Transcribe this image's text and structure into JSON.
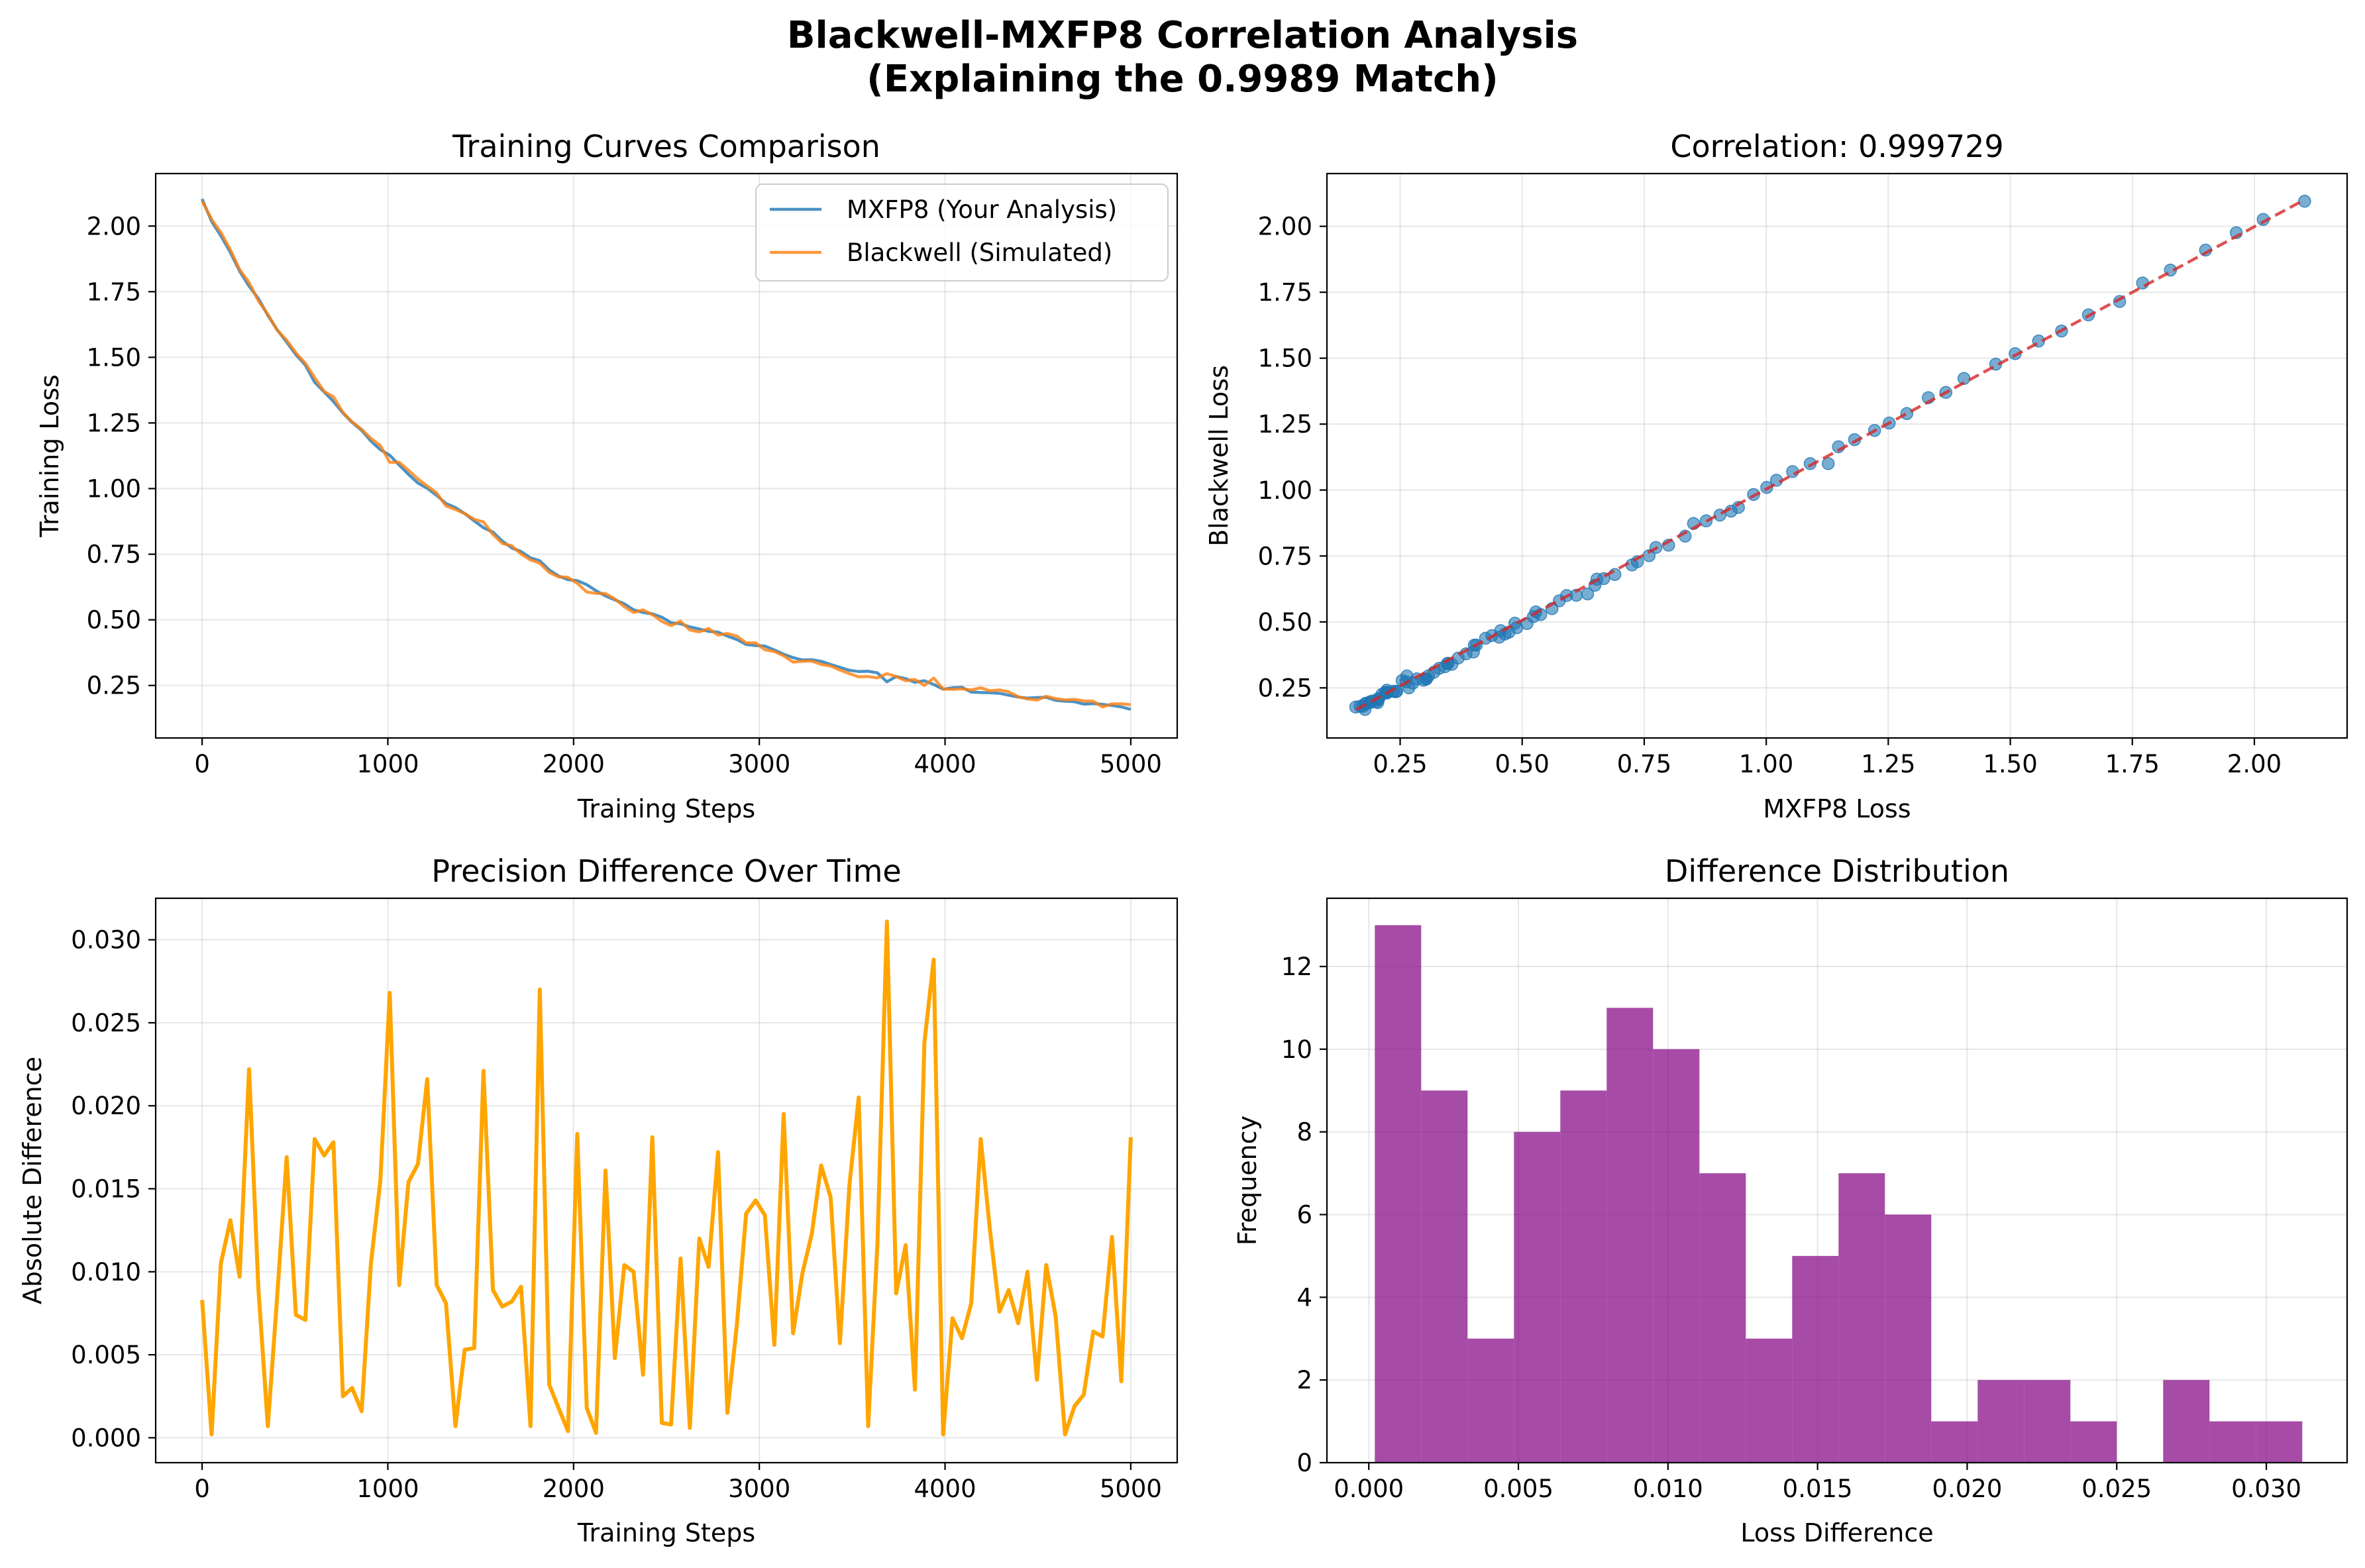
{
  "title_lines": [
    "Blackwell-MXFP8 Correlation Analysis",
    "(Explaining the 0.9989 Match)"
  ],
  "colors": {
    "mxfp8": "#1f77b4",
    "blackwell": "#ff7f0e",
    "fit_line": "#d62728",
    "difference": "#ffa500",
    "histogram": "#800080"
  },
  "chart_data": [
    {
      "type": "line",
      "title": "Training Curves Comparison",
      "xlabel": "Training Steps",
      "ylabel": "Training Loss",
      "xlim": [
        -250,
        5250
      ],
      "ylim": [
        0.05,
        2.2
      ],
      "xticks": [
        0,
        1000,
        2000,
        3000,
        4000,
        5000
      ],
      "yticks": [
        0.25,
        0.5,
        0.75,
        1.0,
        1.25,
        1.5,
        1.75,
        2.0
      ],
      "ytick_labels": [
        "0.25",
        "0.50",
        "0.75",
        "1.00",
        "1.25",
        "1.50",
        "1.75",
        "2.00"
      ],
      "grid": true,
      "legend": "upper right",
      "x": [
        0,
        51,
        101,
        152,
        202,
        253,
        303,
        354,
        404,
        455,
        505,
        556,
        606,
        657,
        707,
        758,
        808,
        859,
        909,
        960,
        1010,
        1061,
        1111,
        1162,
        1212,
        1263,
        1313,
        1364,
        1414,
        1465,
        1515,
        1566,
        1616,
        1667,
        1717,
        1768,
        1818,
        1869,
        1919,
        1970,
        2020,
        2071,
        2121,
        2172,
        2222,
        2273,
        2323,
        2374,
        2424,
        2475,
        2525,
        2576,
        2626,
        2677,
        2727,
        2778,
        2828,
        2879,
        2929,
        2980,
        3030,
        3081,
        3131,
        3182,
        3232,
        3283,
        3333,
        3384,
        3434,
        3485,
        3535,
        3586,
        3636,
        3687,
        3737,
        3788,
        3838,
        3889,
        3939,
        3990,
        4040,
        4091,
        4141,
        4192,
        4242,
        4293,
        4343,
        4394,
        4444,
        4495,
        4545,
        4596,
        4646,
        4697,
        4747,
        4798,
        4848,
        4899,
        4949,
        5000
      ],
      "series": [
        {
          "name": "MXFP8 (Your Analysis)",
          "values": [
            2.103,
            2.018,
            1.963,
            1.9,
            1.828,
            1.771,
            1.724,
            1.66,
            1.605,
            1.558,
            1.51,
            1.47,
            1.405,
            1.368,
            1.332,
            1.288,
            1.252,
            1.222,
            1.181,
            1.148,
            1.127,
            1.09,
            1.054,
            1.021,
            1.001,
            0.974,
            0.943,
            0.928,
            0.905,
            0.877,
            0.851,
            0.834,
            0.8,
            0.774,
            0.76,
            0.736,
            0.725,
            0.69,
            0.667,
            0.653,
            0.649,
            0.634,
            0.611,
            0.591,
            0.576,
            0.561,
            0.538,
            0.528,
            0.523,
            0.51,
            0.489,
            0.485,
            0.473,
            0.465,
            0.456,
            0.453,
            0.438,
            0.425,
            0.406,
            0.402,
            0.4,
            0.385,
            0.369,
            0.356,
            0.347,
            0.348,
            0.342,
            0.33,
            0.319,
            0.308,
            0.303,
            0.304,
            0.298,
            0.264,
            0.284,
            0.276,
            0.262,
            0.268,
            0.254,
            0.236,
            0.241,
            0.243,
            0.225,
            0.223,
            0.222,
            0.22,
            0.213,
            0.206,
            0.202,
            0.204,
            0.205,
            0.193,
            0.19,
            0.188,
            0.179,
            0.181,
            0.178,
            0.174,
            0.168,
            0.159
          ]
        },
        {
          "name": "Blackwell (Simulated)",
          "values": [
            2.095,
            2.026,
            1.976,
            1.91,
            1.834,
            1.785,
            1.715,
            1.664,
            1.603,
            1.565,
            1.517,
            1.477,
            1.423,
            1.37,
            1.35,
            1.29,
            1.254,
            1.226,
            1.191,
            1.164,
            1.1,
            1.1,
            1.07,
            1.037,
            1.01,
            0.983,
            0.934,
            0.92,
            0.905,
            0.883,
            0.873,
            0.825,
            0.791,
            0.782,
            0.751,
            0.728,
            0.716,
            0.68,
            0.664,
            0.662,
            0.639,
            0.606,
            0.601,
            0.6,
            0.58,
            0.55,
            0.528,
            0.538,
            0.52,
            0.494,
            0.478,
            0.495,
            0.461,
            0.454,
            0.467,
            0.442,
            0.448,
            0.438,
            0.412,
            0.412,
            0.386,
            0.379,
            0.363,
            0.339,
            0.342,
            0.343,
            0.33,
            0.324,
            0.309,
            0.295,
            0.283,
            0.284,
            0.279,
            0.295,
            0.284,
            0.268,
            0.273,
            0.25,
            0.278,
            0.237,
            0.235,
            0.237,
            0.233,
            0.241,
            0.23,
            0.233,
            0.226,
            0.207,
            0.199,
            0.194,
            0.209,
            0.2,
            0.195,
            0.197,
            0.191,
            0.19,
            0.168,
            0.18,
            0.18,
            0.177
          ]
        }
      ]
    },
    {
      "type": "scatter",
      "title": "Correlation: 0.999729",
      "xlabel": "MXFP8 Loss",
      "ylabel": "Blackwell Loss",
      "xlim": [
        0.1,
        2.19
      ],
      "ylim": [
        0.06,
        2.2
      ],
      "xticks": [
        0.25,
        0.5,
        0.75,
        1.0,
        1.25,
        1.5,
        1.75,
        2.0
      ],
      "xtick_labels": [
        "0.25",
        "0.50",
        "0.75",
        "1.00",
        "1.25",
        "1.50",
        "1.75",
        "2.00"
      ],
      "yticks": [
        0.25,
        0.5,
        0.75,
        1.0,
        1.25,
        1.5,
        1.75,
        2.0
      ],
      "ytick_labels": [
        "0.25",
        "0.50",
        "0.75",
        "1.00",
        "1.25",
        "1.50",
        "1.75",
        "2.00"
      ],
      "grid": true,
      "fit_line": [
        [
          0.16,
          0.168
        ],
        [
          2.1,
          2.098
        ]
      ],
      "note": "points are the MXFP8 vs Blackwell loss pairs of the first chart"
    },
    {
      "type": "line",
      "title": "Precision Difference Over Time",
      "xlabel": "Training Steps",
      "ylabel": "Absolute Difference",
      "xlim": [
        -250,
        5250
      ],
      "ylim": [
        -0.0015,
        0.0325
      ],
      "xticks": [
        0,
        1000,
        2000,
        3000,
        4000,
        5000
      ],
      "yticks": [
        0.0,
        0.005,
        0.01,
        0.015,
        0.02,
        0.025,
        0.03
      ],
      "ytick_labels": [
        "0.000",
        "0.005",
        "0.010",
        "0.015",
        "0.020",
        "0.025",
        "0.030"
      ],
      "grid": true,
      "series": [
        {
          "name": "",
          "values": [
            0.0083,
            0.0002,
            0.0105,
            0.0131,
            0.0097,
            0.0222,
            0.009,
            0.0007,
            0.0085,
            0.0169,
            0.0074,
            0.0071,
            0.018,
            0.017,
            0.0178,
            0.0025,
            0.003,
            0.0016,
            0.0105,
            0.0155,
            0.0268,
            0.0092,
            0.0154,
            0.0165,
            0.0216,
            0.0092,
            0.0081,
            0.0007,
            0.0053,
            0.0054,
            0.0221,
            0.0089,
            0.0079,
            0.0082,
            0.0091,
            0.0007,
            0.027,
            0.0032,
            0.0018,
            0.0004,
            0.0183,
            0.0018,
            0.0003,
            0.0161,
            0.0048,
            0.0104,
            0.01,
            0.0038,
            0.0181,
            0.0009,
            0.0008,
            0.0108,
            0.0006,
            0.012,
            0.0103,
            0.0172,
            0.0015,
            0.0068,
            0.0135,
            0.0143,
            0.0134,
            0.0056,
            0.0195,
            0.0063,
            0.0099,
            0.0123,
            0.0164,
            0.0145,
            0.0057,
            0.0152,
            0.0205,
            0.0007,
            0.0117,
            0.0311,
            0.0087,
            0.0116,
            0.0029,
            0.0238,
            0.0288,
            0.0002,
            0.0072,
            0.006,
            0.0081,
            0.018,
            0.0125,
            0.0076,
            0.0089,
            0.0069,
            0.01,
            0.0035,
            0.0104,
            0.0073,
            0.0002,
            0.0019,
            0.0026,
            0.0064,
            0.0061,
            0.0121,
            0.0034,
            0.0181
          ]
        }
      ]
    },
    {
      "type": "bar",
      "title": "Difference Distribution",
      "xlabel": "Loss Difference",
      "ylabel": "Frequency",
      "xlim": [
        -0.0014,
        0.0327
      ],
      "ylim": [
        0,
        13.65
      ],
      "xticks": [
        0.0,
        0.005,
        0.01,
        0.015,
        0.02,
        0.025,
        0.03
      ],
      "xtick_labels": [
        "0.000",
        "0.005",
        "0.010",
        "0.015",
        "0.020",
        "0.025",
        "0.030"
      ],
      "yticks": [
        0,
        2,
        4,
        6,
        8,
        10,
        12
      ],
      "ytick_labels": [
        "0",
        "2",
        "4",
        "6",
        "8",
        "10",
        "12"
      ],
      "grid": true,
      "bin_edges": [
        0.0002,
        0.00175,
        0.0033,
        0.00485,
        0.0064,
        0.00795,
        0.0095,
        0.01105,
        0.0126,
        0.01415,
        0.0157,
        0.01725,
        0.0188,
        0.02035,
        0.0219,
        0.02345,
        0.025,
        0.02655,
        0.0281,
        0.02965,
        0.0312
      ],
      "values": [
        13,
        9,
        3,
        8,
        9,
        11,
        10,
        7,
        3,
        5,
        7,
        6,
        1,
        2,
        2,
        1,
        0,
        2,
        1,
        1
      ]
    }
  ]
}
